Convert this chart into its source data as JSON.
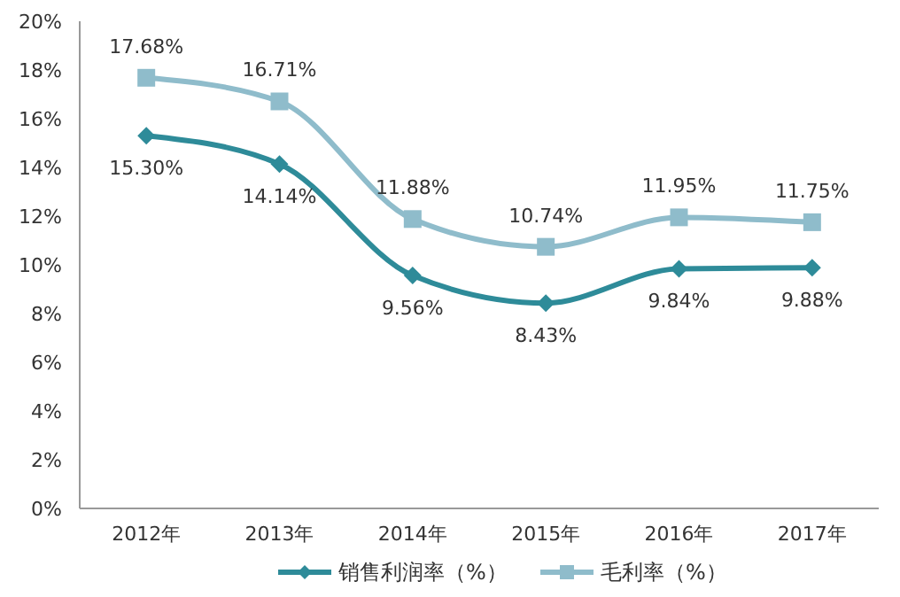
{
  "chart_data": {
    "type": "line",
    "categories": [
      "2012年",
      "2013年",
      "2014年",
      "2015年",
      "2016年",
      "2017年"
    ],
    "series": [
      {
        "name": "销售利润率（%）",
        "color": "#2e8b99",
        "marker": "diamond",
        "values": [
          15.3,
          14.14,
          9.56,
          8.43,
          9.84,
          9.88
        ],
        "value_labels": [
          "15.30%",
          "14.14%",
          "9.56%",
          "8.43%",
          "9.84%",
          "9.88%"
        ]
      },
      {
        "name": "毛利率（%）",
        "color": "#8fbccb",
        "marker": "square",
        "values": [
          17.68,
          16.71,
          11.88,
          10.74,
          11.95,
          11.75
        ],
        "value_labels": [
          "17.68%",
          "16.71%",
          "11.88%",
          "10.74%",
          "11.95%",
          "11.75%"
        ]
      }
    ],
    "ylim": [
      0,
      20
    ],
    "yticks": [
      {
        "value": 0,
        "label": "0%"
      },
      {
        "value": 2,
        "label": "2%"
      },
      {
        "value": 4,
        "label": "4%"
      },
      {
        "value": 6,
        "label": "6%"
      },
      {
        "value": 8,
        "label": "8%"
      },
      {
        "value": 10,
        "label": "10%"
      },
      {
        "value": 12,
        "label": "12%"
      },
      {
        "value": 14,
        "label": "14%"
      },
      {
        "value": 16,
        "label": "16%"
      },
      {
        "value": 18,
        "label": "18%"
      },
      {
        "value": 20,
        "label": "20%"
      }
    ],
    "grid": false,
    "legend": "bottom",
    "line_style": "solid"
  }
}
